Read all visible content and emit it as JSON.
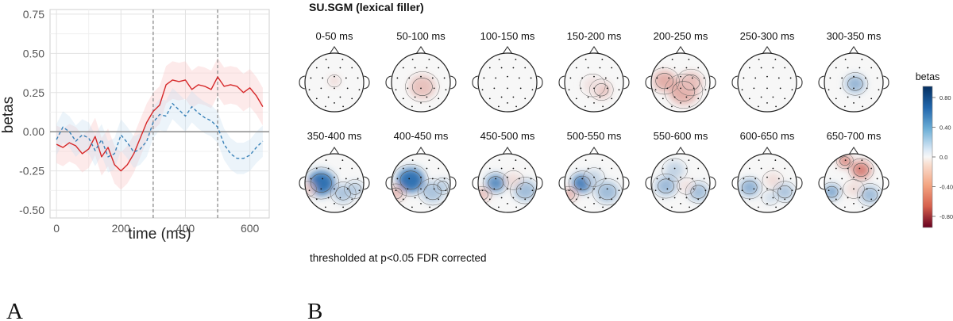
{
  "panel_a_letter": "A",
  "panel_b_letter": "B",
  "panel_b_title": "SU.SGM (lexical filler)",
  "threshold_note": "thresholded at p<0.05 FDR corrected",
  "colorbar_title": "betas",
  "colorbar_ticks": [
    "0.80",
    "0.40",
    "0.0",
    "-0.40",
    "-0.80"
  ],
  "colors": {
    "solid_line": "#d62728",
    "dashed_line": "#3a82b8",
    "negative": "#c0392b",
    "positive": "#2166ac"
  },
  "chart_data": [
    {
      "type": "line",
      "panel": "A",
      "xlabel": "time (ms)",
      "ylabel": "betas",
      "xlim": [
        -20,
        660
      ],
      "ylim": [
        -0.55,
        0.78
      ],
      "xticks": [
        0,
        200,
        400,
        600
      ],
      "yticks": [
        0.75,
        0.5,
        0.25,
        0.0,
        -0.25,
        -0.5
      ],
      "ytick_labels": [
        "0.75",
        "0.50",
        "0.25",
        "0.00",
        "-0.25",
        "-0.50"
      ],
      "vlines": [
        300,
        500
      ],
      "hline": 0,
      "series": [
        {
          "name": "solid",
          "style": "solid",
          "x": [
            0,
            20,
            40,
            60,
            80,
            100,
            120,
            140,
            160,
            180,
            200,
            220,
            240,
            260,
            280,
            300,
            320,
            340,
            360,
            380,
            400,
            420,
            440,
            460,
            480,
            500,
            520,
            540,
            560,
            580,
            600,
            620,
            640
          ],
          "values": [
            -0.08,
            -0.1,
            -0.07,
            -0.09,
            -0.14,
            -0.11,
            -0.03,
            -0.16,
            -0.1,
            -0.21,
            -0.25,
            -0.21,
            -0.14,
            -0.04,
            0.06,
            0.13,
            0.17,
            0.3,
            0.33,
            0.32,
            0.33,
            0.27,
            0.3,
            0.29,
            0.27,
            0.35,
            0.29,
            0.3,
            0.29,
            0.25,
            0.28,
            0.23,
            0.16
          ],
          "ci_half_width": 0.12
        },
        {
          "name": "dashed",
          "style": "dashed",
          "x": [
            0,
            20,
            40,
            60,
            80,
            100,
            120,
            140,
            160,
            180,
            200,
            220,
            240,
            260,
            280,
            300,
            320,
            340,
            360,
            380,
            400,
            420,
            440,
            460,
            480,
            500,
            520,
            540,
            560,
            580,
            600,
            620,
            640
          ],
          "values": [
            -0.05,
            0.03,
            0.0,
            -0.06,
            -0.02,
            -0.04,
            -0.12,
            -0.05,
            -0.16,
            -0.14,
            -0.02,
            -0.07,
            -0.13,
            -0.11,
            -0.06,
            0.06,
            0.11,
            0.1,
            0.18,
            0.14,
            0.1,
            0.16,
            0.12,
            0.09,
            0.07,
            0.03,
            -0.08,
            -0.14,
            -0.17,
            -0.17,
            -0.15,
            -0.1,
            -0.06
          ],
          "ci_half_width": 0.1
        }
      ]
    },
    {
      "type": "heatmap",
      "panel": "B",
      "title": "SU.SGM (lexical filler)",
      "value_range": [
        -1.0,
        1.0
      ],
      "colorbar_label": "betas",
      "maps": [
        {
          "label": "0-50 ms",
          "blobs": [
            {
              "cx": 0.0,
              "cy": -0.05,
              "r": 0.16,
              "v": -0.2
            }
          ]
        },
        {
          "label": "50-100 ms",
          "blobs": [
            {
              "cx": 0.05,
              "cy": 0.15,
              "r": 0.4,
              "v": -0.28
            }
          ]
        },
        {
          "label": "100-150 ms",
          "blobs": []
        },
        {
          "label": "150-200 ms",
          "blobs": [
            {
              "cx": 0.25,
              "cy": 0.25,
              "r": 0.28,
              "v": -0.3
            },
            {
              "cx": -0.05,
              "cy": 0.1,
              "r": 0.3,
              "v": -0.12
            }
          ]
        },
        {
          "label": "200-250 ms",
          "blobs": [
            {
              "cx": -0.55,
              "cy": -0.05,
              "r": 0.35,
              "v": -0.38
            },
            {
              "cx": 0.1,
              "cy": 0.3,
              "r": 0.45,
              "v": -0.38
            },
            {
              "cx": 0.35,
              "cy": 0.0,
              "r": 0.35,
              "v": -0.3
            }
          ]
        },
        {
          "label": "250-300 ms",
          "blobs": []
        },
        {
          "label": "300-350 ms",
          "blobs": [
            {
              "cx": 0.05,
              "cy": 0.05,
              "r": 0.3,
              "v": 0.45
            }
          ]
        },
        {
          "label": "350-400 ms",
          "blobs": [
            {
              "cx": -0.45,
              "cy": 0.0,
              "r": 0.42,
              "v": 0.92
            },
            {
              "cx": 0.3,
              "cy": 0.35,
              "r": 0.3,
              "v": 0.35
            },
            {
              "cx": 0.7,
              "cy": 0.2,
              "r": 0.25,
              "v": 0.3
            },
            {
              "cx": -0.9,
              "cy": 0.2,
              "r": 0.2,
              "v": -0.25
            }
          ]
        },
        {
          "label": "400-450 ms",
          "blobs": [
            {
              "cx": -0.35,
              "cy": -0.1,
              "r": 0.42,
              "v": 0.92
            },
            {
              "cx": 0.4,
              "cy": 0.3,
              "r": 0.35,
              "v": 0.35
            },
            {
              "cx": 0.75,
              "cy": 0.1,
              "r": 0.22,
              "v": 0.3
            },
            {
              "cx": -0.85,
              "cy": 0.35,
              "r": 0.25,
              "v": -0.3
            }
          ]
        },
        {
          "label": "450-500 ms",
          "blobs": [
            {
              "cx": -0.4,
              "cy": 0.0,
              "r": 0.3,
              "v": 0.72
            },
            {
              "cx": 0.6,
              "cy": 0.25,
              "r": 0.35,
              "v": 0.4
            },
            {
              "cx": 0.2,
              "cy": -0.1,
              "r": 0.25,
              "v": -0.15
            },
            {
              "cx": -0.85,
              "cy": 0.4,
              "r": 0.22,
              "v": -0.3
            }
          ]
        },
        {
          "label": "500-550 ms",
          "blobs": [
            {
              "cx": -0.4,
              "cy": 0.0,
              "r": 0.32,
              "v": 0.82
            },
            {
              "cx": 0.45,
              "cy": 0.3,
              "r": 0.35,
              "v": 0.4
            },
            {
              "cx": 0.0,
              "cy": -0.2,
              "r": 0.25,
              "v": 0.25
            },
            {
              "cx": -0.85,
              "cy": 0.4,
              "r": 0.22,
              "v": -0.35
            }
          ]
        },
        {
          "label": "550-600 ms",
          "blobs": [
            {
              "cx": -0.5,
              "cy": 0.1,
              "r": 0.32,
              "v": 0.42
            },
            {
              "cx": 0.6,
              "cy": 0.3,
              "r": 0.3,
              "v": 0.4
            },
            {
              "cx": -0.2,
              "cy": -0.45,
              "r": 0.3,
              "v": 0.25
            },
            {
              "cx": 0.2,
              "cy": 0.1,
              "r": 0.22,
              "v": -0.12
            }
          ]
        },
        {
          "label": "600-650 ms",
          "blobs": [
            {
              "cx": -0.6,
              "cy": 0.15,
              "r": 0.3,
              "v": 0.48
            },
            {
              "cx": 0.6,
              "cy": 0.3,
              "r": 0.28,
              "v": 0.35
            },
            {
              "cx": 0.2,
              "cy": -0.1,
              "r": 0.25,
              "v": -0.15
            },
            {
              "cx": 0.1,
              "cy": 0.5,
              "r": 0.2,
              "v": 0.2
            }
          ]
        },
        {
          "label": "650-700 ms",
          "blobs": [
            {
              "cx": 0.25,
              "cy": -0.45,
              "r": 0.3,
              "v": -0.62
            },
            {
              "cx": -0.3,
              "cy": -0.75,
              "r": 0.2,
              "v": -0.65
            },
            {
              "cx": -0.75,
              "cy": 0.3,
              "r": 0.25,
              "v": 0.55
            },
            {
              "cx": 0.55,
              "cy": 0.4,
              "r": 0.3,
              "v": 0.4
            },
            {
              "cx": 0.0,
              "cy": 0.2,
              "r": 0.25,
              "v": -0.15
            }
          ]
        }
      ]
    }
  ]
}
